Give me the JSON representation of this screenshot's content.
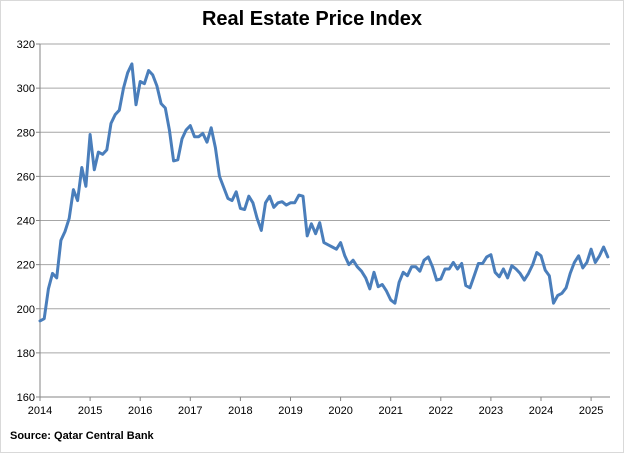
{
  "chart_data": {
    "type": "line",
    "title": "Real Estate Price Index",
    "source": "Source: Qatar Central Bank",
    "xlabel": "",
    "ylabel": "",
    "ylim": [
      160,
      320
    ],
    "yticks": [
      160,
      180,
      200,
      220,
      240,
      260,
      280,
      300,
      320
    ],
    "xticks": [
      "2014",
      "2015",
      "2016",
      "2017",
      "2018",
      "2019",
      "2020",
      "2021",
      "2022",
      "2023",
      "2024",
      "2025"
    ],
    "x_start": "2014-01",
    "frequency": "monthly",
    "grid": true,
    "line_color": "#4a7ebb",
    "grid_color": "#a6a6a6",
    "series": [
      {
        "values": [
          194.5,
          195.5,
          209,
          216,
          214,
          231,
          235,
          241,
          254,
          249,
          264,
          255.5,
          279,
          263,
          271,
          270,
          272,
          284,
          288,
          290,
          300,
          307,
          311,
          292.5,
          303,
          302,
          308,
          306,
          301,
          293,
          291,
          281,
          267,
          267.5,
          277,
          281,
          283,
          278,
          278,
          279.5,
          275.5,
          282,
          273,
          260,
          255,
          250,
          249,
          253,
          245.5,
          245,
          251,
          248,
          241,
          235.5,
          248,
          251,
          246,
          248,
          248.5,
          247,
          248,
          248,
          251.5,
          251,
          233,
          238.5,
          234,
          239,
          230,
          229,
          228,
          227,
          230,
          224,
          220,
          222,
          219,
          217,
          214,
          209,
          216.5,
          210,
          211,
          208,
          204,
          202.5,
          212,
          216.5,
          215,
          219,
          219,
          217,
          222,
          223.5,
          219,
          213,
          213.5,
          218,
          218,
          221,
          218,
          220.5,
          210.5,
          209.5,
          215,
          220.5,
          220.5,
          223.5,
          224.5,
          216.5,
          214.5,
          218,
          214,
          219.5,
          218,
          216,
          213,
          216,
          220,
          225.5,
          224,
          217.5,
          215,
          202.5,
          206,
          207,
          209.5,
          216,
          221,
          224,
          218.5,
          221,
          227,
          221,
          224,
          228,
          223.5
        ]
      }
    ]
  }
}
